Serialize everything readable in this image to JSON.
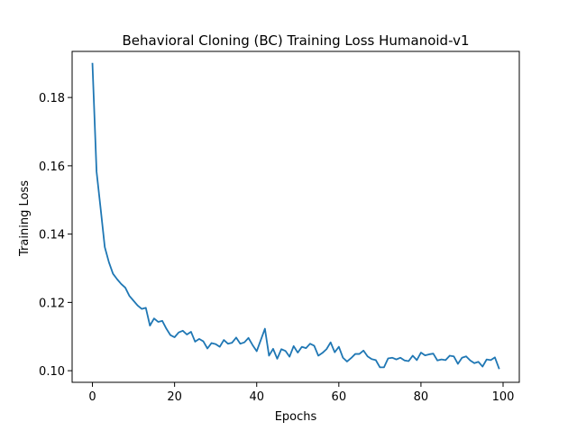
{
  "chart_data": {
    "type": "line",
    "title": "Behavioral Cloning (BC) Training Loss Humanoid-v1",
    "xlabel": "Epochs",
    "ylabel": "Training Loss",
    "xlim": [
      -4.95,
      103.95
    ],
    "ylim": [
      0.0966,
      0.1935
    ],
    "xticks": [
      0,
      20,
      40,
      60,
      80,
      100
    ],
    "yticks": [
      0.1,
      0.12,
      0.14,
      0.16,
      0.18
    ],
    "ytick_labels": [
      "0.10",
      "0.12",
      "0.14",
      "0.16",
      "0.18"
    ],
    "grid": false,
    "legend": "none",
    "series": [
      {
        "color": "#1f77b4",
        "x": [
          0,
          1,
          2,
          3,
          4,
          5,
          6,
          7,
          8,
          9,
          10,
          11,
          12,
          13,
          14,
          15,
          16,
          17,
          18,
          19,
          20,
          21,
          22,
          23,
          24,
          25,
          26,
          27,
          28,
          29,
          30,
          31,
          32,
          33,
          34,
          35,
          36,
          37,
          38,
          39,
          40,
          41,
          42,
          43,
          44,
          45,
          46,
          47,
          48,
          49,
          50,
          51,
          52,
          53,
          54,
          55,
          56,
          57,
          58,
          59,
          60,
          61,
          62,
          63,
          64,
          65,
          66,
          67,
          68,
          69,
          70,
          71,
          72,
          73,
          74,
          75,
          76,
          77,
          78,
          79,
          80,
          81,
          82,
          83,
          84,
          85,
          86,
          87,
          88,
          89,
          90,
          91,
          92,
          93,
          94,
          95,
          96,
          97,
          98,
          99
        ],
        "values": [
          0.1899,
          0.1583,
          0.1474,
          0.1362,
          0.1318,
          0.1284,
          0.1268,
          0.1254,
          0.1243,
          0.1219,
          0.1205,
          0.1191,
          0.1181,
          0.1184,
          0.1132,
          0.1153,
          0.1143,
          0.1146,
          0.1123,
          0.1104,
          0.1098,
          0.1112,
          0.1117,
          0.1106,
          0.1114,
          0.1085,
          0.1093,
          0.1086,
          0.1065,
          0.1081,
          0.1078,
          0.107,
          0.109,
          0.1079,
          0.1082,
          0.1097,
          0.1079,
          0.1083,
          0.1096,
          0.1075,
          0.1057,
          0.109,
          0.1123,
          0.1044,
          0.1064,
          0.1035,
          0.1063,
          0.1058,
          0.1041,
          0.1072,
          0.1053,
          0.107,
          0.1066,
          0.1079,
          0.1073,
          0.1044,
          0.1052,
          0.1063,
          0.1083,
          0.1054,
          0.107,
          0.1038,
          0.1027,
          0.1037,
          0.1049,
          0.1049,
          0.1059,
          0.1042,
          0.1034,
          0.1031,
          0.101,
          0.101,
          0.1036,
          0.1038,
          0.1033,
          0.1038,
          0.103,
          0.1028,
          0.1044,
          0.1031,
          0.1053,
          0.1045,
          0.1048,
          0.105,
          0.103,
          0.1033,
          0.1031,
          0.1044,
          0.1042,
          0.102,
          0.1038,
          0.1042,
          0.103,
          0.1022,
          0.1026,
          0.1012,
          0.1033,
          0.1031,
          0.1039,
          0.1007
        ]
      }
    ]
  }
}
